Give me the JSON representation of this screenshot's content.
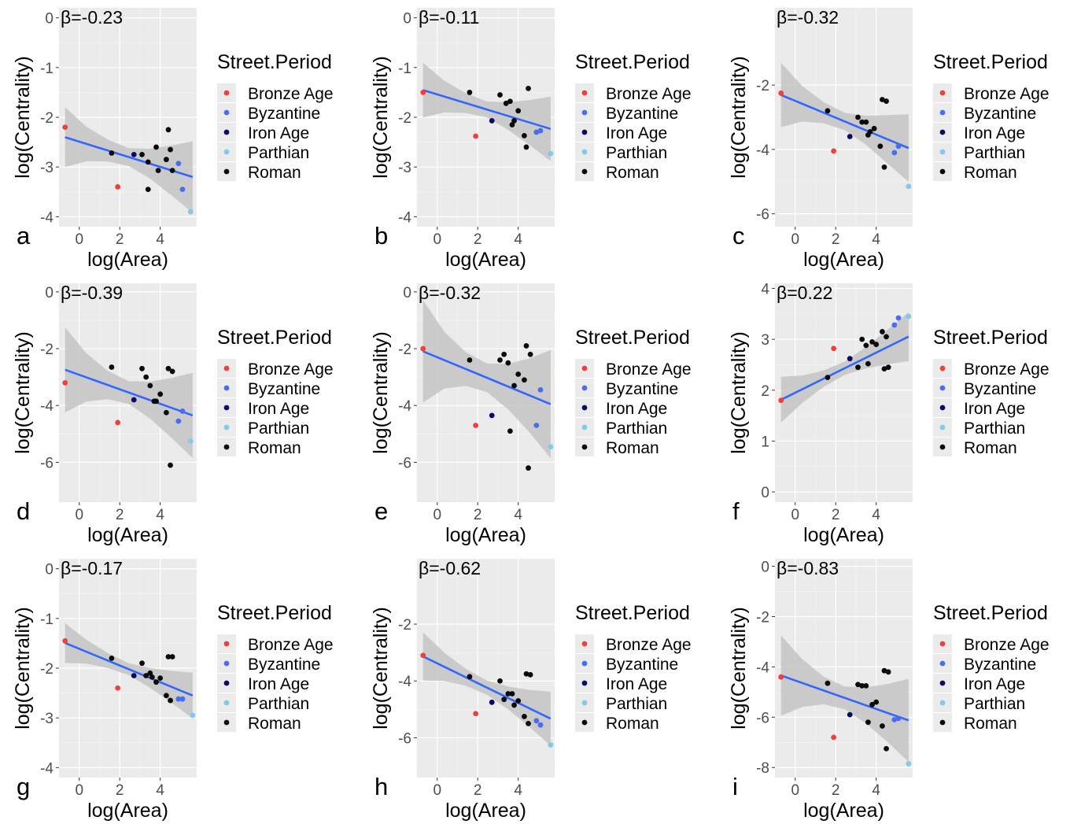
{
  "legend": {
    "title": "Street.Period",
    "items": [
      {
        "label": "Bronze Age",
        "color": "#f0403a"
      },
      {
        "label": "Byzantine",
        "color": "#4a6cf0"
      },
      {
        "label": "Iron Age",
        "color": "#0a0a66"
      },
      {
        "label": "Parthian",
        "color": "#7fcbe8"
      },
      {
        "label": "Roman",
        "color": "#0a0a0a"
      }
    ]
  },
  "colors": {
    "panel": "#ebebeb",
    "grid": "#ffffff",
    "fit_line": "#3366ff",
    "ribbon": "#c4c4c4"
  },
  "chart_data": [
    {
      "type": "scatter",
      "panel_letter": "a",
      "annotation": "β=-0.23",
      "xlabel": "log(Area)",
      "ylabel": "log(Centrality)",
      "xlim": [
        -1,
        5.8
      ],
      "ylim": [
        -4.2,
        0.2
      ],
      "xticks": [
        0,
        2,
        4
      ],
      "yticks": [
        0,
        -1,
        -2,
        -3,
        -4
      ],
      "fit": {
        "slope": -0.127,
        "intercept": -2.49
      },
      "ci": [
        0.6,
        0.35,
        0.22,
        0.18,
        0.3,
        0.5,
        0.72
      ],
      "points": [
        {
          "x": -0.7,
          "y": -2.2,
          "g": "Bronze Age"
        },
        {
          "x": 1.9,
          "y": -3.4,
          "g": "Bronze Age"
        },
        {
          "x": 1.6,
          "y": -2.72,
          "g": "Roman"
        },
        {
          "x": 2.7,
          "y": -2.75,
          "g": "Iron Age"
        },
        {
          "x": 3.1,
          "y": -2.75,
          "g": "Roman"
        },
        {
          "x": 3.4,
          "y": -2.9,
          "g": "Roman"
        },
        {
          "x": 3.4,
          "y": -3.45,
          "g": "Roman"
        },
        {
          "x": 3.8,
          "y": -2.6,
          "g": "Roman"
        },
        {
          "x": 3.9,
          "y": -3.07,
          "g": "Roman"
        },
        {
          "x": 4.3,
          "y": -2.85,
          "g": "Roman"
        },
        {
          "x": 4.4,
          "y": -2.25,
          "g": "Roman"
        },
        {
          "x": 4.5,
          "y": -2.65,
          "g": "Roman"
        },
        {
          "x": 4.6,
          "y": -3.07,
          "g": "Roman"
        },
        {
          "x": 4.9,
          "y": -2.93,
          "g": "Byzantine"
        },
        {
          "x": 5.1,
          "y": -3.45,
          "g": "Byzantine"
        },
        {
          "x": 5.5,
          "y": -3.9,
          "g": "Parthian"
        }
      ]
    },
    {
      "type": "scatter",
      "panel_letter": "b",
      "annotation": "β=-0.11",
      "xlabel": "log(Area)",
      "ylabel": "log(Centrality)",
      "xlim": [
        -1,
        5.8
      ],
      "ylim": [
        -4.2,
        0.2
      ],
      "xticks": [
        0,
        2,
        4
      ],
      "yticks": [
        0,
        -1,
        -2,
        -3,
        -4
      ],
      "fit": {
        "slope": -0.124,
        "intercept": -1.54
      },
      "ci": [
        0.55,
        0.32,
        0.2,
        0.16,
        0.28,
        0.45,
        0.65
      ],
      "points": [
        {
          "x": -0.7,
          "y": -1.5,
          "g": "Bronze Age"
        },
        {
          "x": 1.9,
          "y": -2.38,
          "g": "Bronze Age"
        },
        {
          "x": 1.6,
          "y": -1.5,
          "g": "Roman"
        },
        {
          "x": 2.7,
          "y": -2.07,
          "g": "Iron Age"
        },
        {
          "x": 3.1,
          "y": -1.55,
          "g": "Roman"
        },
        {
          "x": 3.4,
          "y": -1.72,
          "g": "Roman"
        },
        {
          "x": 3.6,
          "y": -1.68,
          "g": "Roman"
        },
        {
          "x": 3.7,
          "y": -2.15,
          "g": "Roman"
        },
        {
          "x": 3.8,
          "y": -2.07,
          "g": "Roman"
        },
        {
          "x": 4.0,
          "y": -1.87,
          "g": "Roman"
        },
        {
          "x": 4.3,
          "y": -2.37,
          "g": "Roman"
        },
        {
          "x": 4.4,
          "y": -2.6,
          "g": "Roman"
        },
        {
          "x": 4.5,
          "y": -1.42,
          "g": "Roman"
        },
        {
          "x": 4.9,
          "y": -2.3,
          "g": "Byzantine"
        },
        {
          "x": 5.1,
          "y": -2.27,
          "g": "Byzantine"
        },
        {
          "x": 5.6,
          "y": -2.73,
          "g": "Parthian"
        }
      ]
    },
    {
      "type": "scatter",
      "panel_letter": "c",
      "annotation": "β=-0.32",
      "xlabel": "log(Area)",
      "ylabel": "log(Centrality)",
      "xlim": [
        -1,
        5.8
      ],
      "ylim": [
        -6.4,
        0.4
      ],
      "xticks": [
        0,
        2,
        4
      ],
      "yticks": [
        -2,
        -4,
        -6
      ],
      "fit": {
        "slope": -0.262,
        "intercept": -2.49
      },
      "ci": [
        1.0,
        0.55,
        0.33,
        0.27,
        0.45,
        0.75,
        1.05
      ],
      "points": [
        {
          "x": -0.7,
          "y": -2.25,
          "g": "Bronze Age"
        },
        {
          "x": 1.9,
          "y": -4.05,
          "g": "Bronze Age"
        },
        {
          "x": 1.6,
          "y": -2.8,
          "g": "Roman"
        },
        {
          "x": 2.7,
          "y": -3.6,
          "g": "Iron Age"
        },
        {
          "x": 3.1,
          "y": -3.0,
          "g": "Roman"
        },
        {
          "x": 3.3,
          "y": -3.15,
          "g": "Roman"
        },
        {
          "x": 3.5,
          "y": -3.15,
          "g": "Roman"
        },
        {
          "x": 3.6,
          "y": -3.55,
          "g": "Roman"
        },
        {
          "x": 3.7,
          "y": -3.45,
          "g": "Roman"
        },
        {
          "x": 3.9,
          "y": -3.35,
          "g": "Roman"
        },
        {
          "x": 4.2,
          "y": -3.9,
          "g": "Roman"
        },
        {
          "x": 4.3,
          "y": -2.45,
          "g": "Roman"
        },
        {
          "x": 4.5,
          "y": -2.5,
          "g": "Roman"
        },
        {
          "x": 4.4,
          "y": -4.55,
          "g": "Roman"
        },
        {
          "x": 4.9,
          "y": -4.1,
          "g": "Byzantine"
        },
        {
          "x": 5.1,
          "y": -3.9,
          "g": "Byzantine"
        },
        {
          "x": 5.6,
          "y": -5.15,
          "g": "Parthian"
        }
      ]
    },
    {
      "type": "scatter",
      "panel_letter": "d",
      "annotation": "β=-0.39",
      "xlabel": "log(Area)",
      "ylabel": "log(Centrality)",
      "xlim": [
        -1,
        5.8
      ],
      "ylim": [
        -7.4,
        0.3
      ],
      "xticks": [
        0,
        2,
        4
      ],
      "yticks": [
        0,
        -2,
        -4,
        -6
      ],
      "fit": {
        "slope": -0.255,
        "intercept": -2.92
      },
      "ci": [
        1.5,
        0.85,
        0.5,
        0.4,
        0.65,
        1.05,
        1.5
      ],
      "points": [
        {
          "x": -0.7,
          "y": -3.2,
          "g": "Bronze Age"
        },
        {
          "x": 1.9,
          "y": -4.6,
          "g": "Bronze Age"
        },
        {
          "x": 1.6,
          "y": -2.65,
          "g": "Roman"
        },
        {
          "x": 2.7,
          "y": -3.8,
          "g": "Iron Age"
        },
        {
          "x": 3.1,
          "y": -2.7,
          "g": "Roman"
        },
        {
          "x": 3.3,
          "y": -3.0,
          "g": "Roman"
        },
        {
          "x": 3.5,
          "y": -3.3,
          "g": "Roman"
        },
        {
          "x": 3.7,
          "y": -3.85,
          "g": "Roman"
        },
        {
          "x": 3.8,
          "y": -3.85,
          "g": "Roman"
        },
        {
          "x": 4.0,
          "y": -3.6,
          "g": "Roman"
        },
        {
          "x": 4.3,
          "y": -4.25,
          "g": "Roman"
        },
        {
          "x": 4.4,
          "y": -2.7,
          "g": "Roman"
        },
        {
          "x": 4.6,
          "y": -2.8,
          "g": "Roman"
        },
        {
          "x": 4.5,
          "y": -6.1,
          "g": "Roman"
        },
        {
          "x": 4.9,
          "y": -4.55,
          "g": "Byzantine"
        },
        {
          "x": 5.1,
          "y": -4.2,
          "g": "Byzantine"
        },
        {
          "x": 5.5,
          "y": -5.25,
          "g": "Parthian"
        }
      ]
    },
    {
      "type": "scatter",
      "panel_letter": "e",
      "annotation": "β=-0.32",
      "xlabel": "log(Area)",
      "ylabel": "log(Centrality)",
      "xlim": [
        -1,
        5.8
      ],
      "ylim": [
        -7.4,
        0.3
      ],
      "xticks": [
        0,
        2,
        4
      ],
      "yticks": [
        0,
        -2,
        -4,
        -6
      ],
      "fit": {
        "slope": -0.295,
        "intercept": -2.3
      },
      "ci": [
        1.8,
        1.0,
        0.6,
        0.5,
        0.8,
        1.3,
        1.9
      ],
      "points": [
        {
          "x": -0.7,
          "y": -2.0,
          "g": "Bronze Age"
        },
        {
          "x": 1.9,
          "y": -4.7,
          "g": "Bronze Age"
        },
        {
          "x": 1.6,
          "y": -2.4,
          "g": "Roman"
        },
        {
          "x": 2.7,
          "y": -4.35,
          "g": "Iron Age"
        },
        {
          "x": 3.1,
          "y": -2.4,
          "g": "Roman"
        },
        {
          "x": 3.3,
          "y": -2.2,
          "g": "Roman"
        },
        {
          "x": 3.5,
          "y": -2.5,
          "g": "Roman"
        },
        {
          "x": 3.6,
          "y": -4.9,
          "g": "Roman"
        },
        {
          "x": 3.8,
          "y": -3.3,
          "g": "Roman"
        },
        {
          "x": 4.0,
          "y": -2.9,
          "g": "Roman"
        },
        {
          "x": 4.3,
          "y": -3.1,
          "g": "Roman"
        },
        {
          "x": 4.4,
          "y": -1.9,
          "g": "Roman"
        },
        {
          "x": 4.6,
          "y": -2.2,
          "g": "Roman"
        },
        {
          "x": 4.5,
          "y": -6.2,
          "g": "Roman"
        },
        {
          "x": 4.9,
          "y": -4.7,
          "g": "Byzantine"
        },
        {
          "x": 5.1,
          "y": -3.45,
          "g": "Byzantine"
        },
        {
          "x": 5.6,
          "y": -5.45,
          "g": "Parthian"
        }
      ]
    },
    {
      "type": "scatter",
      "panel_letter": "f",
      "annotation": "β=0.22",
      "xlabel": "log(Area)",
      "ylabel": "log(Centrality)",
      "xlim": [
        -1,
        5.8
      ],
      "ylim": [
        -0.2,
        4.1
      ],
      "xticks": [
        0,
        2,
        4
      ],
      "yticks": [
        0,
        1,
        2,
        3,
        4
      ],
      "fit": {
        "slope": 0.197,
        "intercept": 1.95
      },
      "ci": [
        0.45,
        0.27,
        0.16,
        0.13,
        0.21,
        0.34,
        0.48
      ],
      "points": [
        {
          "x": -0.7,
          "y": 1.8,
          "g": "Bronze Age"
        },
        {
          "x": 1.9,
          "y": 2.82,
          "g": "Bronze Age"
        },
        {
          "x": 1.6,
          "y": 2.25,
          "g": "Roman"
        },
        {
          "x": 2.7,
          "y": 2.62,
          "g": "Iron Age"
        },
        {
          "x": 3.1,
          "y": 2.45,
          "g": "Roman"
        },
        {
          "x": 3.3,
          "y": 3.0,
          "g": "Roman"
        },
        {
          "x": 3.5,
          "y": 2.88,
          "g": "Roman"
        },
        {
          "x": 3.6,
          "y": 2.52,
          "g": "Roman"
        },
        {
          "x": 3.8,
          "y": 2.95,
          "g": "Roman"
        },
        {
          "x": 4.0,
          "y": 2.9,
          "g": "Roman"
        },
        {
          "x": 4.3,
          "y": 3.15,
          "g": "Roman"
        },
        {
          "x": 4.4,
          "y": 2.42,
          "g": "Roman"
        },
        {
          "x": 4.6,
          "y": 2.45,
          "g": "Roman"
        },
        {
          "x": 4.5,
          "y": 3.05,
          "g": "Roman"
        },
        {
          "x": 4.9,
          "y": 3.28,
          "g": "Byzantine"
        },
        {
          "x": 5.1,
          "y": 3.42,
          "g": "Byzantine"
        },
        {
          "x": 5.6,
          "y": 3.45,
          "g": "Parthian"
        }
      ]
    },
    {
      "type": "scatter",
      "panel_letter": "g",
      "annotation": "β=-0.17",
      "xlabel": "log(Area)",
      "ylabel": "log(Centrality)",
      "xlim": [
        -1,
        5.8
      ],
      "ylim": [
        -4.2,
        0.2
      ],
      "xticks": [
        0,
        2,
        4
      ],
      "yticks": [
        0,
        -1,
        -2,
        -3,
        -4
      ],
      "fit": {
        "slope": -0.168,
        "intercept": -1.61
      },
      "ci": [
        0.4,
        0.24,
        0.15,
        0.12,
        0.2,
        0.32,
        0.46
      ],
      "points": [
        {
          "x": -0.7,
          "y": -1.45,
          "g": "Bronze Age"
        },
        {
          "x": 1.9,
          "y": -2.4,
          "g": "Bronze Age"
        },
        {
          "x": 1.6,
          "y": -1.8,
          "g": "Roman"
        },
        {
          "x": 2.7,
          "y": -2.15,
          "g": "Iron Age"
        },
        {
          "x": 3.1,
          "y": -1.9,
          "g": "Roman"
        },
        {
          "x": 3.3,
          "y": -2.15,
          "g": "Roman"
        },
        {
          "x": 3.5,
          "y": -2.1,
          "g": "Roman"
        },
        {
          "x": 3.6,
          "y": -2.18,
          "g": "Roman"
        },
        {
          "x": 3.8,
          "y": -2.28,
          "g": "Roman"
        },
        {
          "x": 4.0,
          "y": -2.2,
          "g": "Roman"
        },
        {
          "x": 4.3,
          "y": -2.55,
          "g": "Roman"
        },
        {
          "x": 4.4,
          "y": -1.77,
          "g": "Roman"
        },
        {
          "x": 4.6,
          "y": -1.77,
          "g": "Roman"
        },
        {
          "x": 4.5,
          "y": -2.65,
          "g": "Roman"
        },
        {
          "x": 4.9,
          "y": -2.62,
          "g": "Byzantine"
        },
        {
          "x": 5.1,
          "y": -2.62,
          "g": "Byzantine"
        },
        {
          "x": 5.6,
          "y": -2.95,
          "g": "Parthian"
        }
      ]
    },
    {
      "type": "scatter",
      "panel_letter": "h",
      "annotation": "β=-0.62",
      "xlabel": "log(Area)",
      "ylabel": "log(Centrality)",
      "xlim": [
        -1,
        5.8
      ],
      "ylim": [
        -7.4,
        0.3
      ],
      "xticks": [
        0,
        2,
        4
      ],
      "yticks": [
        -2,
        -4,
        -6
      ],
      "fit": {
        "slope": -0.348,
        "intercept": -3.38
      },
      "ci": [
        0.85,
        0.5,
        0.3,
        0.25,
        0.4,
        0.65,
        0.95
      ],
      "points": [
        {
          "x": -0.7,
          "y": -3.1,
          "g": "Bronze Age"
        },
        {
          "x": 1.9,
          "y": -5.15,
          "g": "Bronze Age"
        },
        {
          "x": 1.6,
          "y": -3.85,
          "g": "Roman"
        },
        {
          "x": 2.7,
          "y": -4.75,
          "g": "Iron Age"
        },
        {
          "x": 3.1,
          "y": -4.0,
          "g": "Roman"
        },
        {
          "x": 3.3,
          "y": -4.65,
          "g": "Roman"
        },
        {
          "x": 3.5,
          "y": -4.45,
          "g": "Roman"
        },
        {
          "x": 3.7,
          "y": -4.45,
          "g": "Roman"
        },
        {
          "x": 3.8,
          "y": -4.85,
          "g": "Roman"
        },
        {
          "x": 4.0,
          "y": -4.7,
          "g": "Roman"
        },
        {
          "x": 4.3,
          "y": -5.25,
          "g": "Roman"
        },
        {
          "x": 4.4,
          "y": -3.75,
          "g": "Roman"
        },
        {
          "x": 4.6,
          "y": -3.78,
          "g": "Roman"
        },
        {
          "x": 4.5,
          "y": -5.5,
          "g": "Roman"
        },
        {
          "x": 4.9,
          "y": -5.4,
          "g": "Byzantine"
        },
        {
          "x": 5.1,
          "y": -5.55,
          "g": "Byzantine"
        },
        {
          "x": 5.6,
          "y": -6.25,
          "g": "Parthian"
        }
      ]
    },
    {
      "type": "scatter",
      "panel_letter": "i",
      "annotation": "β=-0.83",
      "xlabel": "log(Area)",
      "ylabel": "log(Centrality)",
      "xlim": [
        -1,
        5.8
      ],
      "ylim": [
        -8.4,
        0.3
      ],
      "xticks": [
        0,
        2,
        4
      ],
      "yticks": [
        0,
        -2,
        -4,
        -6,
        -8
      ],
      "fit": {
        "slope": -0.283,
        "intercept": -4.54
      },
      "ci": [
        1.6,
        0.95,
        0.55,
        0.45,
        0.72,
        1.15,
        1.65
      ],
      "points": [
        {
          "x": -0.7,
          "y": -4.4,
          "g": "Bronze Age"
        },
        {
          "x": 1.9,
          "y": -6.8,
          "g": "Bronze Age"
        },
        {
          "x": 1.6,
          "y": -4.65,
          "g": "Roman"
        },
        {
          "x": 2.7,
          "y": -5.9,
          "g": "Iron Age"
        },
        {
          "x": 3.1,
          "y": -4.7,
          "g": "Roman"
        },
        {
          "x": 3.3,
          "y": -4.75,
          "g": "Roman"
        },
        {
          "x": 3.5,
          "y": -4.75,
          "g": "Roman"
        },
        {
          "x": 3.6,
          "y": -6.2,
          "g": "Roman"
        },
        {
          "x": 3.8,
          "y": -5.5,
          "g": "Roman"
        },
        {
          "x": 4.0,
          "y": -5.4,
          "g": "Roman"
        },
        {
          "x": 4.3,
          "y": -6.35,
          "g": "Roman"
        },
        {
          "x": 4.4,
          "y": -4.15,
          "g": "Roman"
        },
        {
          "x": 4.6,
          "y": -4.2,
          "g": "Roman"
        },
        {
          "x": 4.5,
          "y": -7.25,
          "g": "Roman"
        },
        {
          "x": 4.9,
          "y": -6.1,
          "g": "Byzantine"
        },
        {
          "x": 5.1,
          "y": -6.05,
          "g": "Byzantine"
        },
        {
          "x": 5.6,
          "y": -7.85,
          "g": "Parthian"
        }
      ]
    }
  ]
}
